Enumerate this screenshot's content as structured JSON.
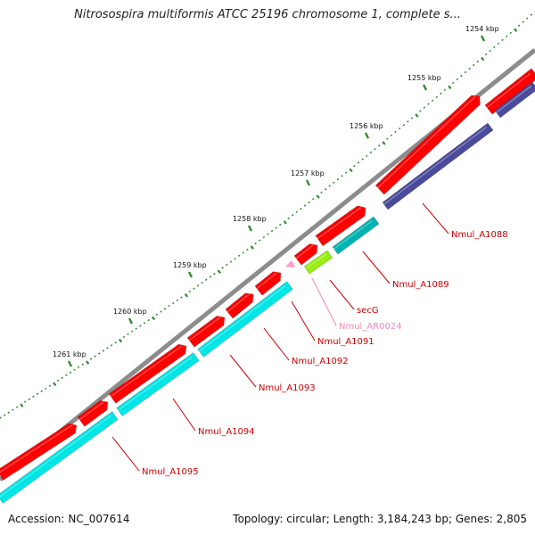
{
  "title": "Nitrosospira multiformis ATCC 25196 chromosome 1, complete s...",
  "footer": {
    "accession_label": "Accession:",
    "accession_value": "NC_007614",
    "topology_label": "Topology:",
    "topology_value": "circular",
    "length_label": "Length:",
    "length_value": "3,184,243 bp",
    "genes_label": "Genes:",
    "genes_value": "2,805"
  },
  "colors": {
    "backbone": "#8c8c8c",
    "gene_forward": "#ff0000",
    "gene_reverse_cyan": "#00e5e5",
    "gene_reverse_dark": "#4b4b9c",
    "gene_reverse_teal": "#00b2b2",
    "gene_secG": "#99ee11",
    "rna": "#ff99cc",
    "label": "#cc0000",
    "rna_label": "#ee88bb",
    "tick_major": "#2e8b2e",
    "tick_minor": "#2e8b2e"
  },
  "ticks": [
    "1254 kbp",
    "1255 kbp",
    "1256 kbp",
    "1257 kbp",
    "1258 kbp",
    "1259 kbp",
    "1260 kbp",
    "1261 kbp"
  ],
  "gene_labels": [
    {
      "text": "Nmul_A1088",
      "kind": "gene"
    },
    {
      "text": "Nmul_A1089",
      "kind": "gene"
    },
    {
      "text": "secG",
      "kind": "gene"
    },
    {
      "text": "Nmul_AR0024",
      "kind": "rna"
    },
    {
      "text": "Nmul_A1091",
      "kind": "gene"
    },
    {
      "text": "Nmul_A1092",
      "kind": "gene"
    },
    {
      "text": "Nmul_A1093",
      "kind": "gene"
    },
    {
      "text": "Nmul_A1094",
      "kind": "gene"
    },
    {
      "text": "Nmul_A1095",
      "kind": "gene"
    }
  ]
}
